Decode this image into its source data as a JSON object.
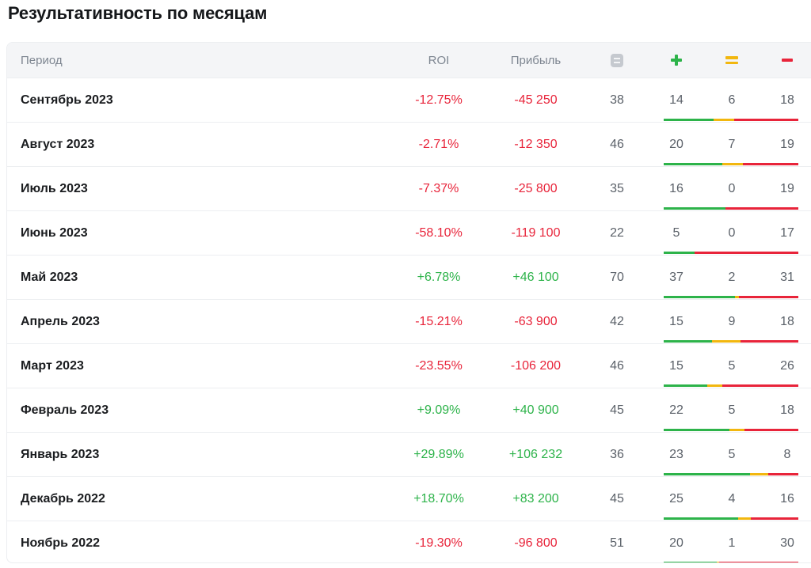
{
  "title": "Результативность по месяцам",
  "header": {
    "period": "Период",
    "roi": "ROI",
    "profit": "Прибыль",
    "count_icon": "document-icon",
    "win_icon": "plus-icon",
    "draw_icon": "equals-icon",
    "lose_icon": "minus-icon"
  },
  "colors": {
    "positive": "#2db34a",
    "negative": "#e8243a",
    "draw": "#f2b70f"
  },
  "rows": [
    {
      "period": "Сентябрь 2023",
      "roi": "-12.75%",
      "profit": "-45 250",
      "count": 38,
      "win": 14,
      "draw": 6,
      "lose": 18
    },
    {
      "period": "Август 2023",
      "roi": "-2.71%",
      "profit": "-12 350",
      "count": 46,
      "win": 20,
      "draw": 7,
      "lose": 19
    },
    {
      "period": "Июль 2023",
      "roi": "-7.37%",
      "profit": "-25 800",
      "count": 35,
      "win": 16,
      "draw": 0,
      "lose": 19
    },
    {
      "period": "Июнь 2023",
      "roi": "-58.10%",
      "profit": "-119 100",
      "count": 22,
      "win": 5,
      "draw": 0,
      "lose": 17
    },
    {
      "period": "Май 2023",
      "roi": "+6.78%",
      "profit": "+46 100",
      "count": 70,
      "win": 37,
      "draw": 2,
      "lose": 31
    },
    {
      "period": "Апрель 2023",
      "roi": "-15.21%",
      "profit": "-63 900",
      "count": 42,
      "win": 15,
      "draw": 9,
      "lose": 18
    },
    {
      "period": "Март 2023",
      "roi": "-23.55%",
      "profit": "-106 200",
      "count": 46,
      "win": 15,
      "draw": 5,
      "lose": 26
    },
    {
      "period": "Февраль 2023",
      "roi": "+9.09%",
      "profit": "+40 900",
      "count": 45,
      "win": 22,
      "draw": 5,
      "lose": 18
    },
    {
      "period": "Январь 2023",
      "roi": "+29.89%",
      "profit": "+106 232",
      "count": 36,
      "win": 23,
      "draw": 5,
      "lose": 8
    },
    {
      "period": "Декабрь 2022",
      "roi": "+18.70%",
      "profit": "+83 200",
      "count": 45,
      "win": 25,
      "draw": 4,
      "lose": 16
    },
    {
      "period": "Ноябрь 2022",
      "roi": "-19.30%",
      "profit": "-96 800",
      "count": 51,
      "win": 20,
      "draw": 1,
      "lose": 30
    }
  ]
}
